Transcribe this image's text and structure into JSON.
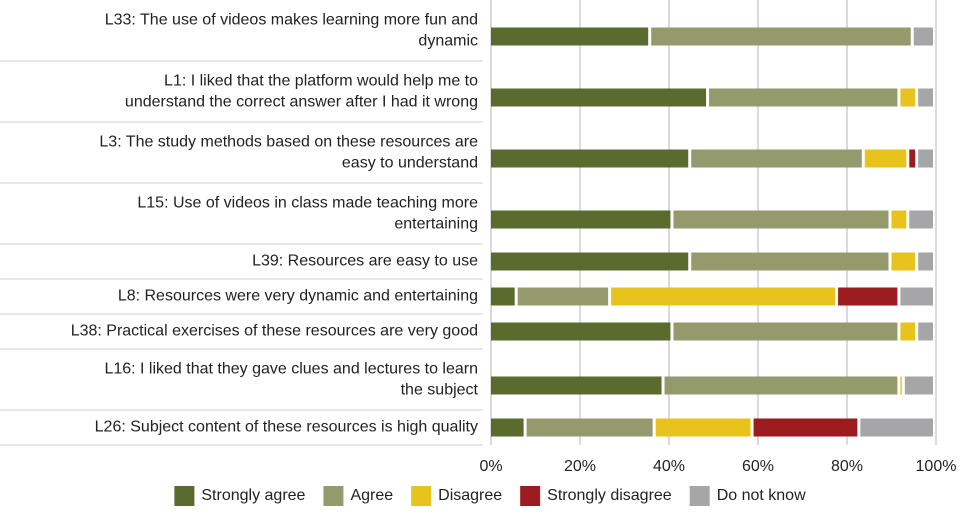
{
  "chart_data": {
    "type": "stacked-bar-horizontal",
    "categories": [
      "L33: The use of videos makes learning more fun and\ndynamic",
      "L1: I liked that the platform would help me to\nunderstand the correct answer after I had it wrong",
      "L3: The study methods based on these resources are\neasy to understand",
      "L15: Use of videos in class made teaching more\nentertaining",
      "L39: Resources are easy to use",
      "L8: Resources were very dynamic and entertaining",
      "L38: Practical exercises of these resources are very good",
      "L16: I liked that they gave clues and lectures to learn\nthe subject",
      "L26: Subject content of these resources is high quality"
    ],
    "series": [
      {
        "name": "Strongly agree",
        "color": "#5a6b2d",
        "values": [
          36,
          49,
          45,
          41,
          45,
          6,
          41,
          39,
          8
        ]
      },
      {
        "name": "Agree",
        "color": "#959a6c",
        "values": [
          59,
          43,
          39,
          49,
          45,
          21,
          51,
          53,
          29
        ]
      },
      {
        "name": "Disagree",
        "color": "#e8c21d",
        "values": [
          0,
          4,
          10,
          4,
          6,
          51,
          4,
          1,
          22
        ]
      },
      {
        "name": "Strongly disagree",
        "color": "#9b1b1f",
        "values": [
          0,
          0,
          2,
          0,
          0,
          14,
          0,
          0,
          24
        ]
      },
      {
        "name": "Do not know",
        "color": "#a6a6a8",
        "values": [
          5,
          4,
          4,
          6,
          4,
          8,
          4,
          7,
          17
        ]
      }
    ],
    "xlim": [
      0,
      100
    ],
    "xticks": [
      {
        "value": 0,
        "label": "0%"
      },
      {
        "value": 20,
        "label": "20%"
      },
      {
        "value": 40,
        "label": "40%"
      },
      {
        "value": 60,
        "label": "60%"
      },
      {
        "value": 80,
        "label": "80%"
      },
      {
        "value": 100,
        "label": "100%"
      }
    ],
    "grid": true,
    "legend": "bottom"
  }
}
